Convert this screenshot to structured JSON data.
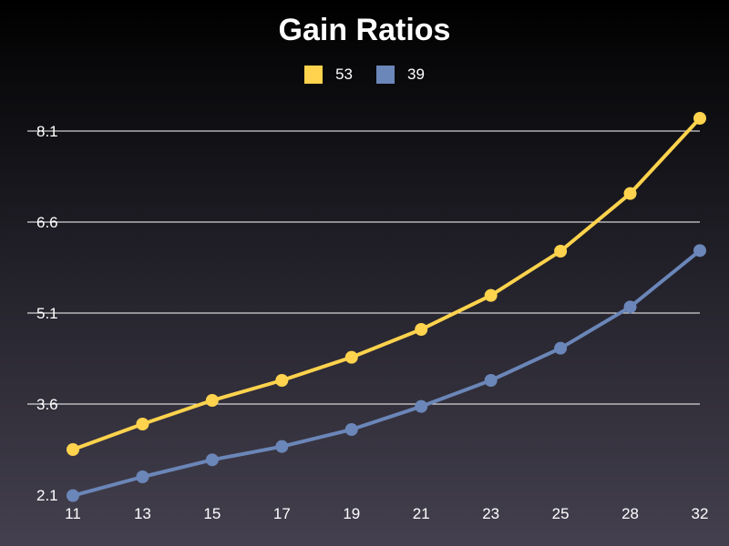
{
  "chart_data": {
    "type": "line",
    "title": "Gain Ratios",
    "xlabel": "",
    "ylabel": "",
    "x": [
      "11",
      "13",
      "15",
      "17",
      "19",
      "21",
      "23",
      "25",
      "28",
      "32"
    ],
    "yticks": [
      "2.1",
      "3.6",
      "5.1",
      "6.6",
      "8.1"
    ],
    "ylim": [
      2.1,
      8.1
    ],
    "grid": "horizontal",
    "legend": "top-center",
    "series": [
      {
        "name": "53",
        "color": "#ffd34d",
        "values": [
          2.85,
          3.27,
          3.66,
          3.99,
          4.37,
          4.83,
          5.39,
          6.12,
          7.07,
          8.31
        ]
      },
      {
        "name": "39",
        "color": "#6b86b8",
        "values": [
          2.09,
          2.4,
          2.68,
          2.9,
          3.18,
          3.56,
          3.99,
          4.52,
          5.2,
          6.13
        ]
      }
    ]
  }
}
